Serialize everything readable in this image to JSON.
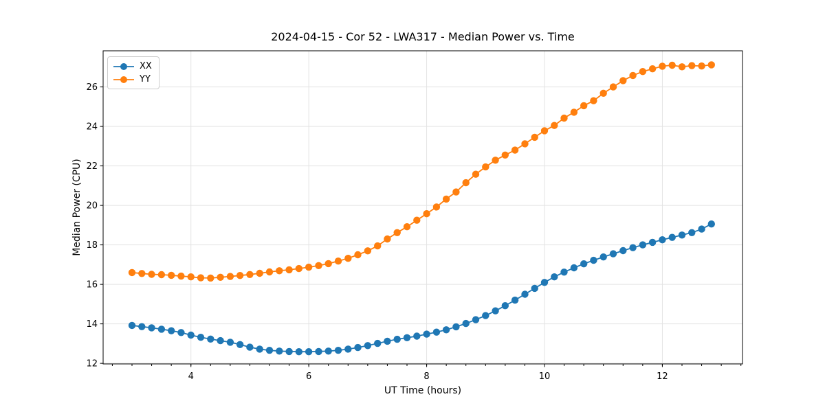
{
  "chart_data": {
    "type": "line",
    "title": "2024-04-15 - Cor 52 - LWA317 - Median Power vs. Time",
    "xlabel": "UT Time (hours)",
    "ylabel": "Median Power (CPU)",
    "xlim": [
      2.51,
      13.36
    ],
    "ylim": [
      11.97,
      27.83
    ],
    "xticks": [
      4,
      6,
      8,
      10,
      12
    ],
    "yticks": [
      12,
      14,
      16,
      18,
      20,
      22,
      24,
      26
    ],
    "x_minor_step": 0.33333,
    "grid": true,
    "legend_position": "upper-left",
    "marker": "o",
    "x": [
      3.0,
      3.167,
      3.333,
      3.5,
      3.667,
      3.833,
      4.0,
      4.167,
      4.333,
      4.5,
      4.667,
      4.833,
      5.0,
      5.167,
      5.333,
      5.5,
      5.667,
      5.833,
      6.0,
      6.167,
      6.333,
      6.5,
      6.667,
      6.833,
      7.0,
      7.167,
      7.333,
      7.5,
      7.667,
      7.833,
      8.0,
      8.167,
      8.333,
      8.5,
      8.667,
      8.833,
      9.0,
      9.167,
      9.333,
      9.5,
      9.667,
      9.833,
      10.0,
      10.167,
      10.333,
      10.5,
      10.667,
      10.833,
      11.0,
      11.167,
      11.333,
      11.5,
      11.667,
      11.833,
      12.0,
      12.167,
      12.333,
      12.5,
      12.667,
      12.833
    ],
    "series": [
      {
        "name": "XX",
        "color": "#1f77b4",
        "values": [
          13.92,
          13.86,
          13.8,
          13.73,
          13.65,
          13.56,
          13.43,
          13.32,
          13.23,
          13.15,
          13.07,
          12.95,
          12.82,
          12.72,
          12.66,
          12.62,
          12.6,
          12.59,
          12.59,
          12.6,
          12.62,
          12.66,
          12.72,
          12.8,
          12.9,
          13.01,
          13.12,
          13.22,
          13.3,
          13.38,
          13.48,
          13.58,
          13.7,
          13.85,
          14.02,
          14.21,
          14.42,
          14.66,
          14.92,
          15.2,
          15.5,
          15.8,
          16.1,
          16.38,
          16.62,
          16.84,
          17.04,
          17.22,
          17.39,
          17.55,
          17.71,
          17.86,
          18.0,
          18.13,
          18.26,
          18.38,
          18.5,
          18.62,
          18.8,
          19.06
        ]
      },
      {
        "name": "YY",
        "color": "#ff7f0e",
        "values": [
          16.6,
          16.55,
          16.51,
          16.49,
          16.46,
          16.42,
          16.38,
          16.33,
          16.32,
          16.36,
          16.4,
          16.45,
          16.5,
          16.56,
          16.63,
          16.69,
          16.74,
          16.8,
          16.87,
          16.95,
          17.05,
          17.18,
          17.32,
          17.5,
          17.7,
          17.95,
          18.3,
          18.62,
          18.92,
          19.25,
          19.58,
          19.92,
          20.32,
          20.68,
          21.15,
          21.58,
          21.95,
          22.29,
          22.55,
          22.8,
          23.12,
          23.45,
          23.78,
          24.05,
          24.42,
          24.72,
          25.05,
          25.3,
          25.68,
          26.0,
          26.32,
          26.58,
          26.78,
          26.92,
          27.05,
          27.1,
          27.02,
          27.08,
          27.06,
          27.12
        ]
      }
    ]
  }
}
